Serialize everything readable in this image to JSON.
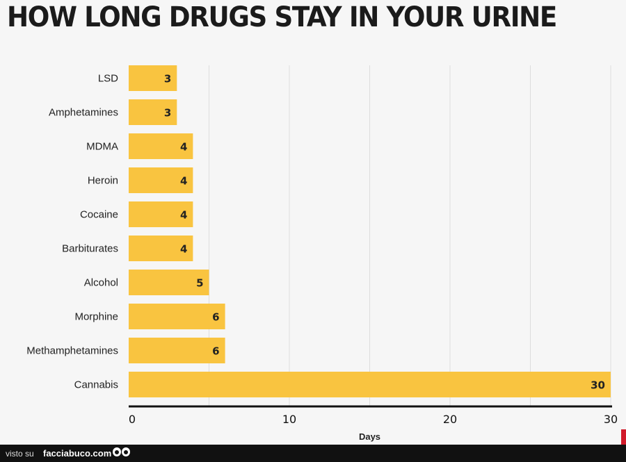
{
  "chart_data": {
    "type": "bar",
    "orientation": "horizontal",
    "title": "HOW LONG DRUGS STAY IN YOUR URINE",
    "xlabel": "Days",
    "ylabel": "",
    "categories": [
      "LSD",
      "Amphetamines",
      "MDMA",
      "Heroin",
      "Cocaine",
      "Barbiturates",
      "Alcohol",
      "Morphine",
      "Methamphetamines",
      "Cannabis"
    ],
    "values": [
      3,
      3,
      4,
      4,
      4,
      4,
      5,
      6,
      6,
      30
    ],
    "xlim": [
      0,
      30
    ],
    "xticks": [
      0,
      10,
      20,
      30
    ],
    "grid": "vertical",
    "bar_color": "#f9c440",
    "legend": "none"
  },
  "footer": {
    "visto_label": "visto su",
    "site_label": "facciabuco.com"
  },
  "colors": {
    "background": "#f6f6f6",
    "bar": "#f9c440",
    "gridline": "#dddddd",
    "axis": "#111111",
    "footer_bg": "#111111",
    "corner_mark": "#d11a2a"
  },
  "icons": {
    "footer_logo": "eyes-icon"
  }
}
